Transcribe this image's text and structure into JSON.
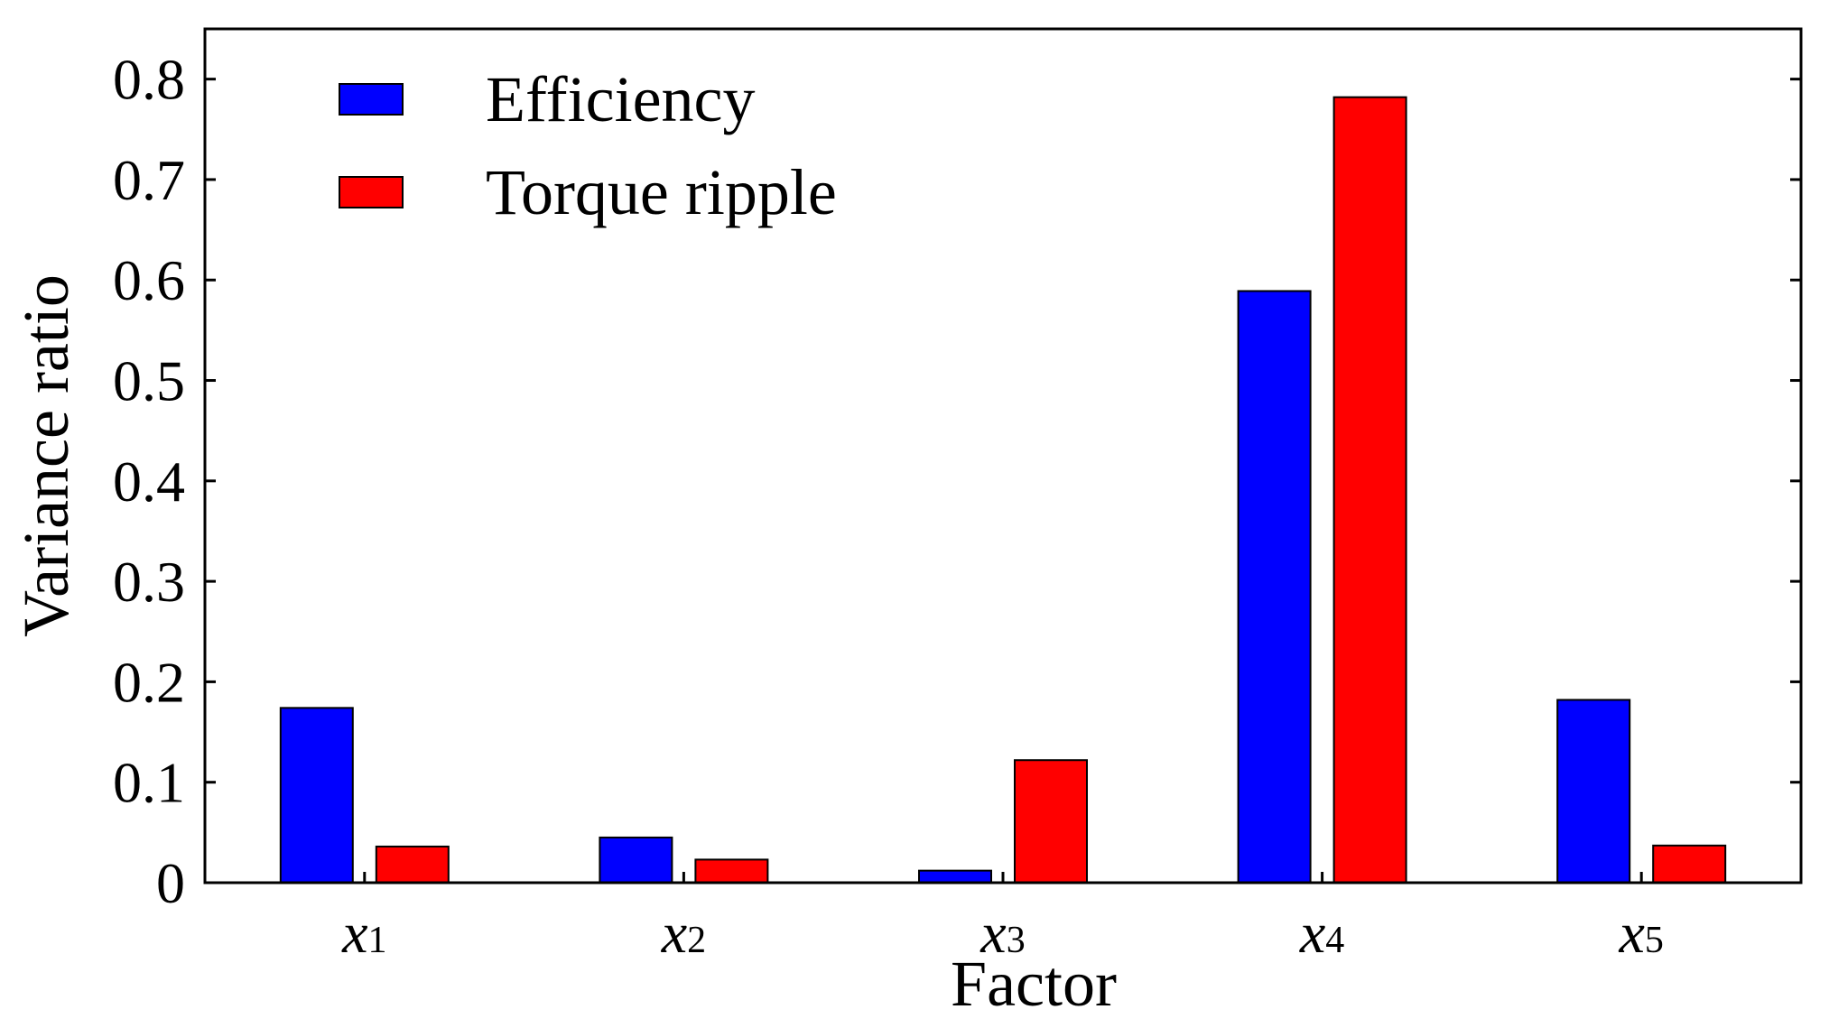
{
  "chart_data": {
    "type": "bar",
    "title": "",
    "xlabel": "Factor",
    "ylabel": "Variance ratio",
    "categories": [
      {
        "var": "x",
        "sub": "1"
      },
      {
        "var": "x",
        "sub": "2"
      },
      {
        "var": "x",
        "sub": "3"
      },
      {
        "var": "x",
        "sub": "4"
      },
      {
        "var": "x",
        "sub": "5"
      }
    ],
    "series": [
      {
        "name": "Efficiency",
        "color": "#0000ff",
        "values": [
          0.174,
          0.045,
          0.012,
          0.589,
          0.182
        ]
      },
      {
        "name": "Torque ripple",
        "color": "#ff0000",
        "values": [
          0.036,
          0.023,
          0.122,
          0.782,
          0.037
        ]
      }
    ],
    "ylim": [
      0,
      0.85
    ],
    "yticks": [
      0,
      0.1,
      0.2,
      0.3,
      0.4,
      0.5,
      0.6,
      0.7,
      0.8
    ],
    "ytick_labels": [
      "0",
      "0.1",
      "0.2",
      "0.3",
      "0.4",
      "0.5",
      "0.6",
      "0.7",
      "0.8"
    ],
    "legend_position": "top-left",
    "grid": false
  }
}
